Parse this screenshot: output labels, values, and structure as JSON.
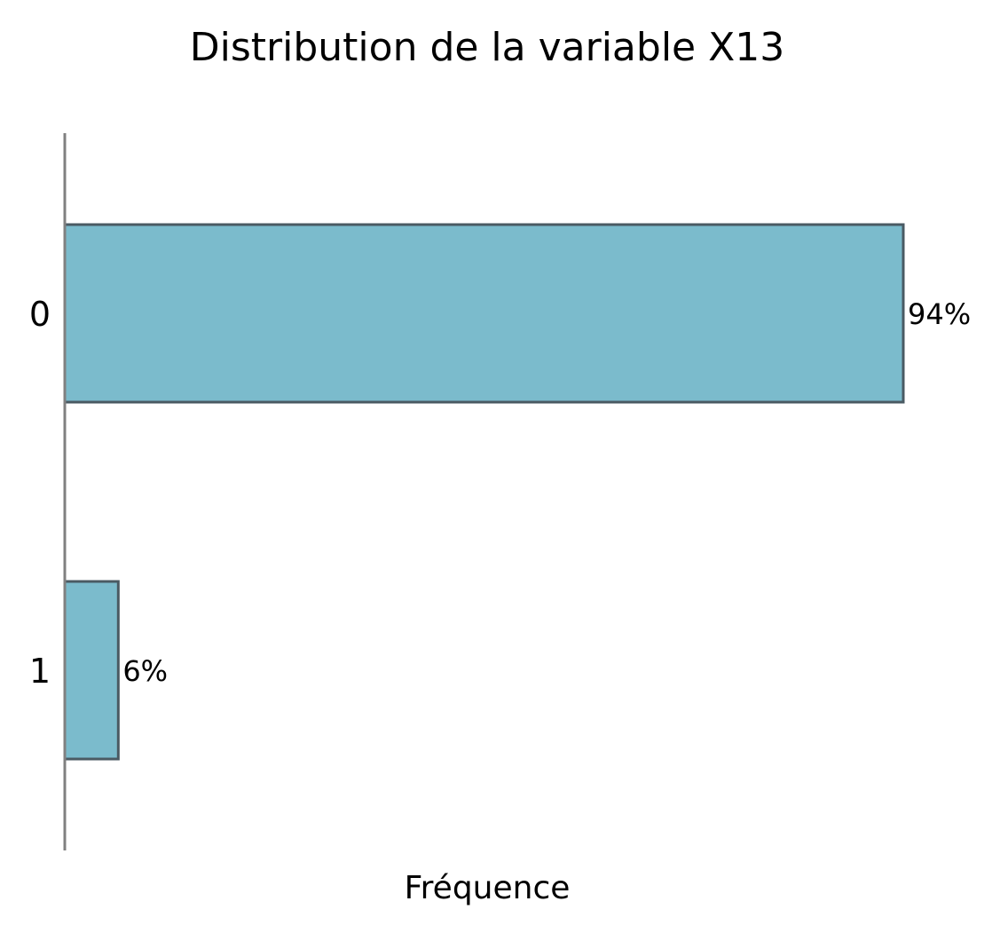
{
  "chart_data": {
    "type": "bar",
    "orientation": "horizontal",
    "title": "Distribution de la variable X13",
    "xlabel": "Fréquence",
    "ylabel": "",
    "categories": [
      "0",
      "1"
    ],
    "values": [
      94,
      6
    ],
    "value_labels": [
      "94%",
      "6%"
    ],
    "xlim": [
      0,
      100
    ],
    "grid": false,
    "legend": "none",
    "colors": {
      "bar_fill": "#7bbbcc",
      "bar_edge": "#4a5a63",
      "axis_line": "#808080"
    }
  }
}
